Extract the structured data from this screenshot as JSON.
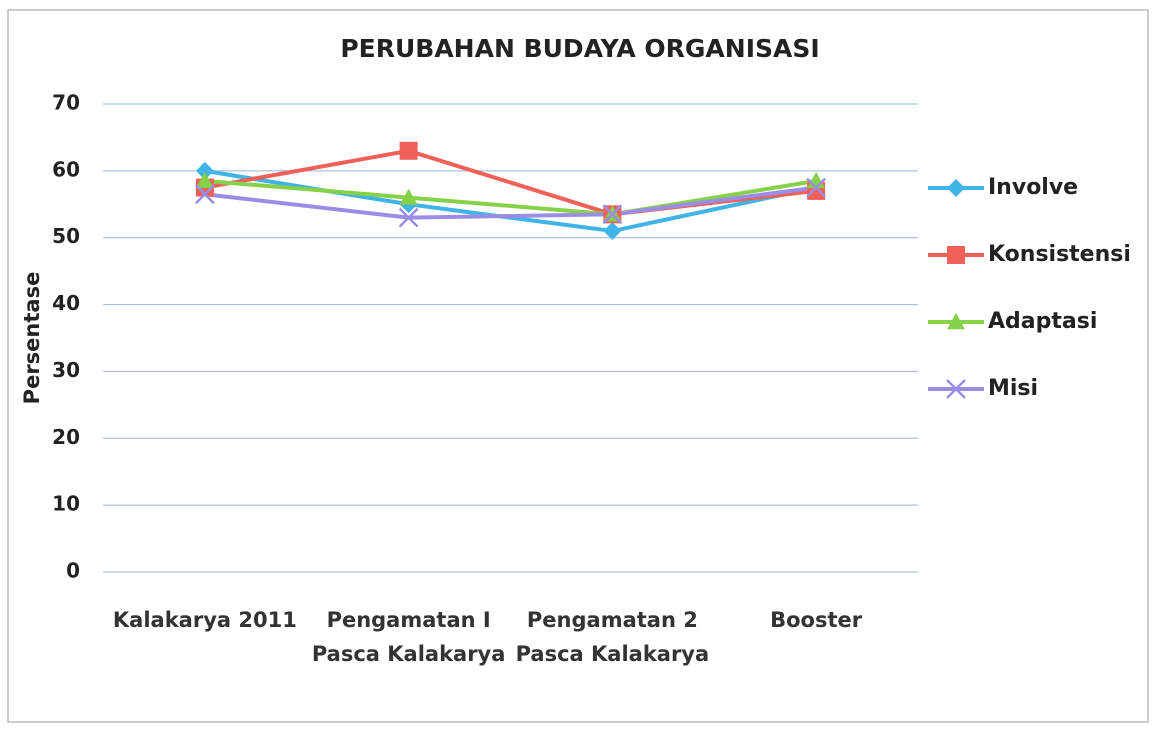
{
  "chart_data": {
    "type": "line",
    "title": "PERUBAHAN BUDAYA ORGANISASI",
    "y_label": "Persentase",
    "categories": [
      "Kalakarya 2011",
      "Pengamatan I Pasca Kalakarya",
      "Pengamatan 2 Pasca Kalakarya",
      "Booster"
    ],
    "series": [
      {
        "name": "Involve",
        "color": "#40b4e6",
        "marker": "diamond",
        "values": [
          60,
          55,
          51,
          57.5
        ]
      },
      {
        "name": "Konsistensi",
        "color": "#ef6158",
        "marker": "square",
        "values": [
          57.5,
          63,
          53.5,
          57
        ]
      },
      {
        "name": "Adaptasi",
        "color": "#86d04a",
        "marker": "triangle",
        "values": [
          58.5,
          56,
          53.5,
          58.5
        ]
      },
      {
        "name": "Misi",
        "color": "#9b8de6",
        "marker": "x",
        "values": [
          56.5,
          53,
          53.5,
          57.5
        ]
      }
    ],
    "ylim": [
      0,
      70
    ],
    "yticks": [
      0,
      10,
      20,
      30,
      40,
      50,
      60,
      70
    ],
    "grid": true,
    "legend": "right"
  }
}
